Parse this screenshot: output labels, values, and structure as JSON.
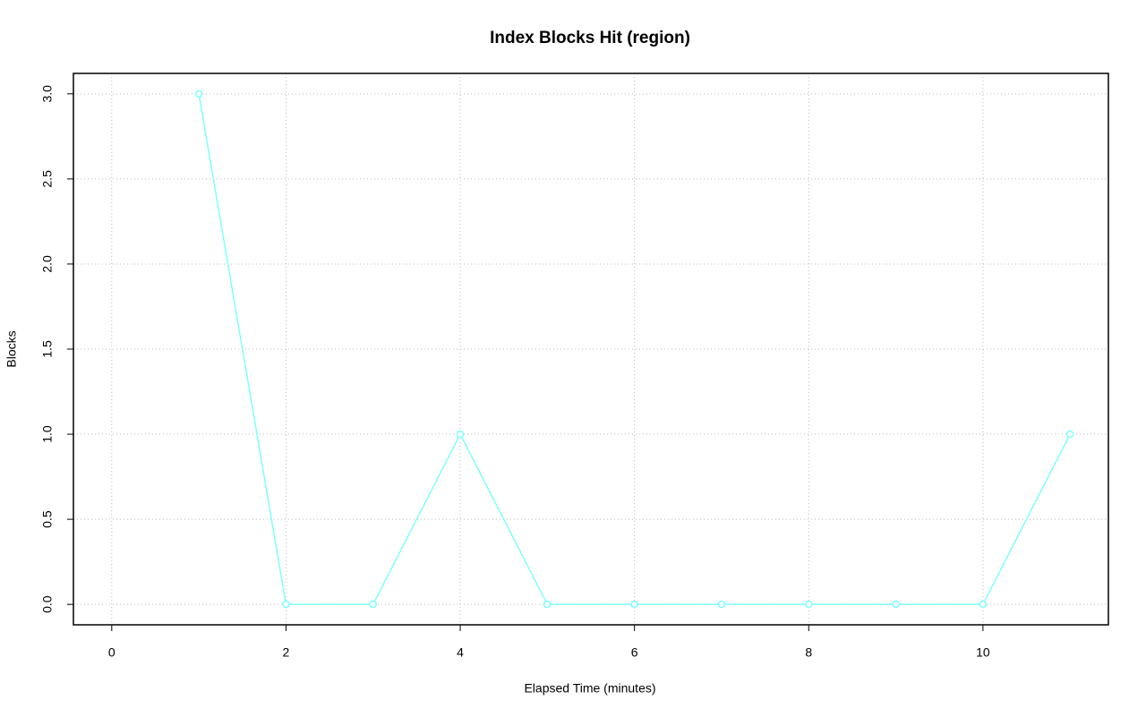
{
  "chart_data": {
    "type": "line",
    "title": "Index Blocks Hit (region)",
    "x_label": "Elapsed Time (minutes)",
    "y_label": "Blocks",
    "x": [
      1,
      2,
      3,
      4,
      5,
      6,
      7,
      8,
      9,
      10,
      11
    ],
    "series": [
      {
        "name": "region",
        "color": "#80ffff",
        "values": [
          3,
          0,
          0,
          1,
          0,
          0,
          0,
          0,
          0,
          0,
          1
        ]
      }
    ],
    "xlim": [
      -0.44,
      11.44
    ],
    "xticks": [
      0,
      2,
      4,
      6,
      8,
      10
    ],
    "ylim": [
      -0.12,
      3.12
    ],
    "yticks": [
      {
        "value": 0,
        "label": "0.0"
      },
      0.5,
      {
        "value": 1,
        "label": "1.0"
      },
      1.5,
      {
        "value": 2,
        "label": "2.0"
      },
      2.5,
      {
        "value": 3,
        "label": "3.0"
      }
    ],
    "grid": true
  }
}
